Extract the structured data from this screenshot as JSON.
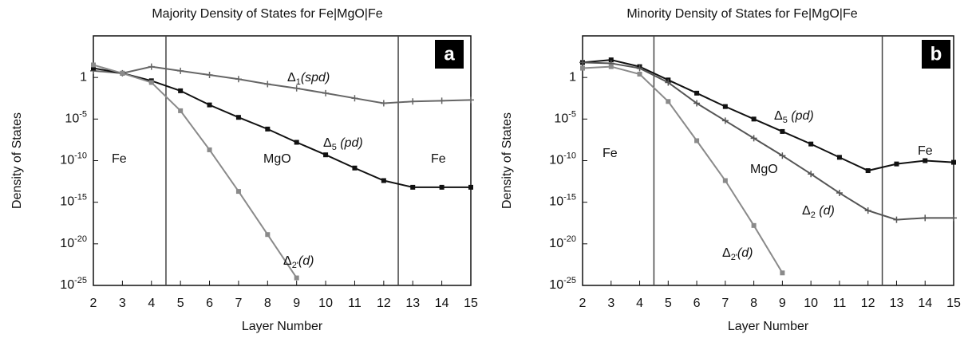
{
  "chart_data": [
    {
      "type": "line",
      "title": "Majority Density of States for Fe|MgO|Fe",
      "xlabel": "Layer Number",
      "ylabel": "Density of States",
      "panel_label": "a",
      "log_y": true,
      "x": [
        2,
        3,
        4,
        5,
        6,
        7,
        8,
        9,
        10,
        11,
        12,
        13,
        14,
        15
      ],
      "xlim": [
        2,
        15
      ],
      "xticks": [
        2,
        3,
        4,
        5,
        6,
        7,
        8,
        9,
        10,
        11,
        12,
        13,
        14,
        15
      ],
      "ylim": [
        1e-25,
        100000.0
      ],
      "yticks": [
        {
          "value": 1e-25,
          "label": "10-25"
        },
        {
          "value": 1e-20,
          "label": "10-20"
        },
        {
          "value": 1e-15,
          "label": "10-15"
        },
        {
          "value": 1e-10,
          "label": "10-10"
        },
        {
          "value": 1e-05,
          "label": "10-5"
        },
        1
      ],
      "vlines": [
        4.5,
        12.5
      ],
      "annotations": [
        "Fe",
        "MgO",
        "Fe"
      ],
      "series": [
        {
          "name": "Δ1(spd)",
          "color": "#666666",
          "marker": "plus",
          "values": [
            6.3,
            3.2,
            20,
            6.3,
            2,
            0.63,
            0.16,
            0.05,
            0.013,
            0.0032,
            0.00079,
            0.0013,
            0.0016,
            0.002
          ]
        },
        {
          "name": "Δ5 (pd)",
          "color": "#111111",
          "marker": "square",
          "values": [
            13,
            3.2,
            0.4,
            0.025,
            0.0005,
            1.6e-05,
            6.3e-07,
            1.6e-08,
            5e-10,
            1.3e-11,
            4e-13,
            6.3e-14,
            6.3e-14,
            6.3e-14
          ]
        },
        {
          "name": "Δ2'(d)",
          "color": "#8a8a8a",
          "marker": "square",
          "values": [
            32,
            3.2,
            0.25,
            0.0001,
            2e-09,
            2e-14,
            1.3e-19,
            8e-25,
            null,
            null,
            null,
            null,
            null,
            null
          ]
        }
      ]
    },
    {
      "type": "line",
      "title": "Minority Density of States for Fe|MgO|Fe",
      "xlabel": "Layer Number",
      "ylabel": "Density of States",
      "panel_label": "b",
      "log_y": true,
      "x": [
        2,
        3,
        4,
        5,
        6,
        7,
        8,
        9,
        10,
        11,
        12,
        13,
        14,
        15
      ],
      "xlim": [
        2,
        15
      ],
      "xticks": [
        2,
        3,
        4,
        5,
        6,
        7,
        8,
        9,
        10,
        11,
        12,
        13,
        14,
        15
      ],
      "ylim": [
        1e-25,
        100000.0
      ],
      "yticks": [
        {
          "value": 1e-25,
          "label": "10-25"
        },
        {
          "value": 1e-20,
          "label": "10-20"
        },
        {
          "value": 1e-15,
          "label": "10-15"
        },
        {
          "value": 1e-10,
          "label": "10-10"
        },
        {
          "value": 1e-05,
          "label": "10-5"
        },
        1
      ],
      "vlines": [
        4.5,
        12.5
      ],
      "annotations": [
        "Fe",
        "MgO",
        "Fe"
      ],
      "series": [
        {
          "name": "Δ5 (pd)",
          "color": "#111111",
          "marker": "square",
          "values": [
            63,
            130,
            20,
            0.5,
            0.013,
            0.00032,
            1e-05,
            3.2e-07,
            1e-08,
            2.5e-10,
            6.3e-12,
            4e-11,
            1e-10,
            6.3e-11
          ]
        },
        {
          "name": "Δ2 (d)",
          "color": "#555555",
          "marker": "plus",
          "values": [
            63,
            50,
            13,
            0.25,
            0.00079,
            6.3e-06,
            5e-08,
            4e-10,
            2.5e-12,
            1.3e-14,
            1e-16,
            7.9e-18,
            1.3e-17,
            1.3e-17
          ]
        },
        {
          "name": "Δ2'(d)",
          "color": "#8a8a8a",
          "marker": "square",
          "values": [
            13,
            20,
            2.5,
            0.0013,
            2.5e-08,
            4e-13,
            1.6e-18,
            3.2e-24,
            null,
            null,
            null,
            null,
            null,
            null
          ]
        }
      ]
    }
  ]
}
